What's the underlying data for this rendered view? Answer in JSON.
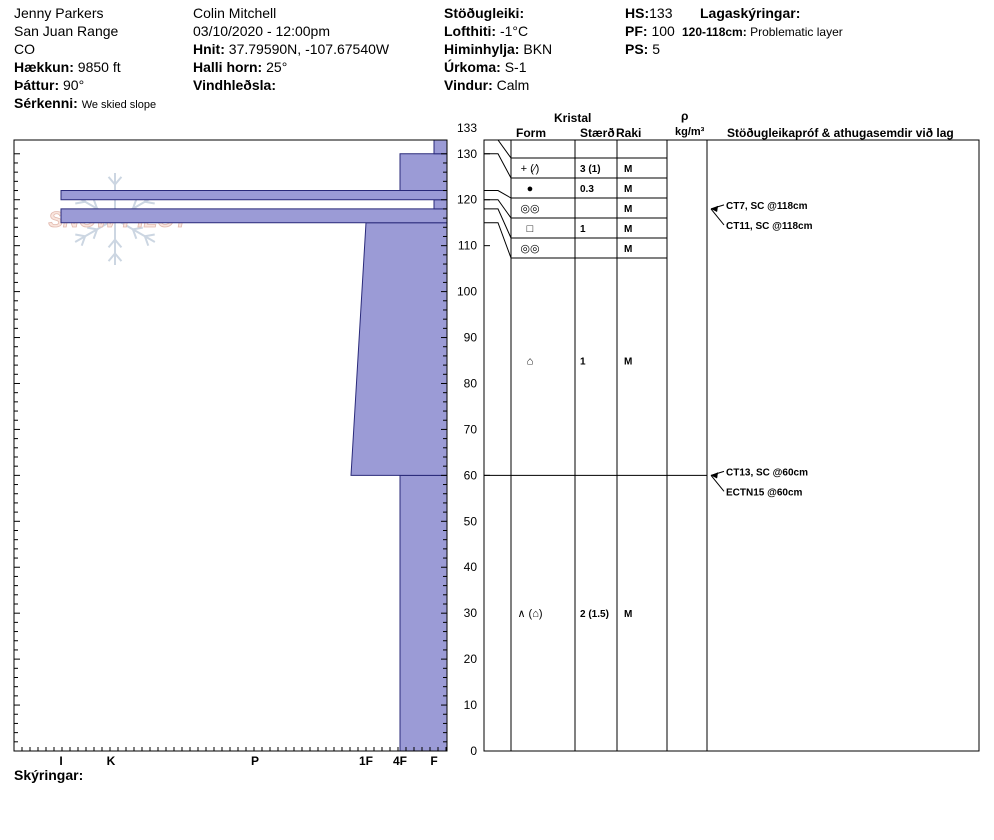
{
  "header": {
    "observer": "Jenny Parkers",
    "range": "San Juan Range",
    "state": "CO",
    "elevation_label": "Hækkun:",
    "elevation_value": "9850 ft",
    "aspect_label": "Þáttur:",
    "aspect_value": "90°",
    "specifics_label": "Sérkenni:",
    "specifics_value": "We skied slope",
    "author": "Colin Mitchell",
    "datetime": "03/10/2020 - 12:00pm",
    "coords_label": "Hnit:",
    "coords_value": "37.79590N, -107.67540W",
    "slope_label": "Halli horn:",
    "slope_value": "25°",
    "wind_loading_label": "Vindhleðsla:",
    "stability_label": "Stöðugleiki:",
    "airtemp_label": "Lofthiti:",
    "airtemp_value": "-1°C",
    "sky_label": "Himinhylja:",
    "sky_value": "BKN",
    "precip_label": "Úrkoma:",
    "precip_value": "S-1",
    "wind_label": "Vindur:",
    "wind_value": "Calm",
    "hs_label": "HS:",
    "hs_value": "133",
    "pf_label": "PF:",
    "pf_value": "100",
    "ps_label": "PS:",
    "ps_value": "5",
    "layer_notes_label": "Lagaskýringar:",
    "layer_notes_range": "120-118cm:",
    "layer_notes_text": "Problematic layer"
  },
  "columns": {
    "crystal": "Kristal",
    "form": "Form",
    "size": "Stærð",
    "moisture": "Raki",
    "rho": "ρ",
    "density_unit": "kg/m³",
    "tests": "Stöðugleikapróf & athugasemdir við lag"
  },
  "footer": {
    "notes_label": "Skýringar:"
  },
  "watermark": "SNOW PILOT",
  "chart_data": {
    "type": "area",
    "ylabel": "",
    "ylim": [
      0,
      133
    ],
    "yticks": [
      0,
      10,
      20,
      30,
      40,
      50,
      60,
      70,
      80,
      90,
      100,
      110,
      120,
      130,
      133
    ],
    "hardness_labels": [
      "I",
      "K",
      "P",
      "1F",
      "4F",
      "F"
    ],
    "layers": [
      {
        "bottom": 0,
        "top": 60,
        "hardness_left": "4F"
      },
      {
        "bottom": 60,
        "top": 115,
        "hardness_left": "1F-",
        "hardness_left_top": "1F"
      },
      {
        "bottom": 115,
        "top": 118,
        "hardness_left": "I"
      },
      {
        "bottom": 118,
        "top": 120,
        "hardness_left": "F"
      },
      {
        "bottom": 120,
        "top": 122,
        "hardness_left": "I"
      },
      {
        "bottom": 122,
        "top": 130,
        "hardness_left": "4F"
      },
      {
        "bottom": 130,
        "top": 133,
        "hardness_left": "F"
      }
    ],
    "grain_rows": [
      {
        "form": "+ (⁄)",
        "size": "3 (1)",
        "moisture": "M"
      },
      {
        "form": "●",
        "size": "0.3",
        "moisture": "M"
      },
      {
        "form": "◎◎",
        "size": "",
        "moisture": "M"
      },
      {
        "form": "□",
        "size": "1",
        "moisture": "M"
      },
      {
        "form": "◎◎",
        "size": "",
        "moisture": "M"
      },
      {
        "form": "⌂",
        "size": "1",
        "moisture": "M"
      },
      {
        "form": "∧ (⌂)",
        "size": "2 (1.5)",
        "moisture": "M"
      }
    ],
    "tests": [
      {
        "depth": 118,
        "lines": [
          "CT7, SC @118cm",
          "CT11, SC @118cm"
        ]
      },
      {
        "depth": 60,
        "lines": [
          "CT13, SC @60cm",
          "ECTN15 @60cm"
        ]
      }
    ],
    "colors": {
      "fill": "#9b9bd6",
      "stroke": "#2a2a7a"
    }
  }
}
